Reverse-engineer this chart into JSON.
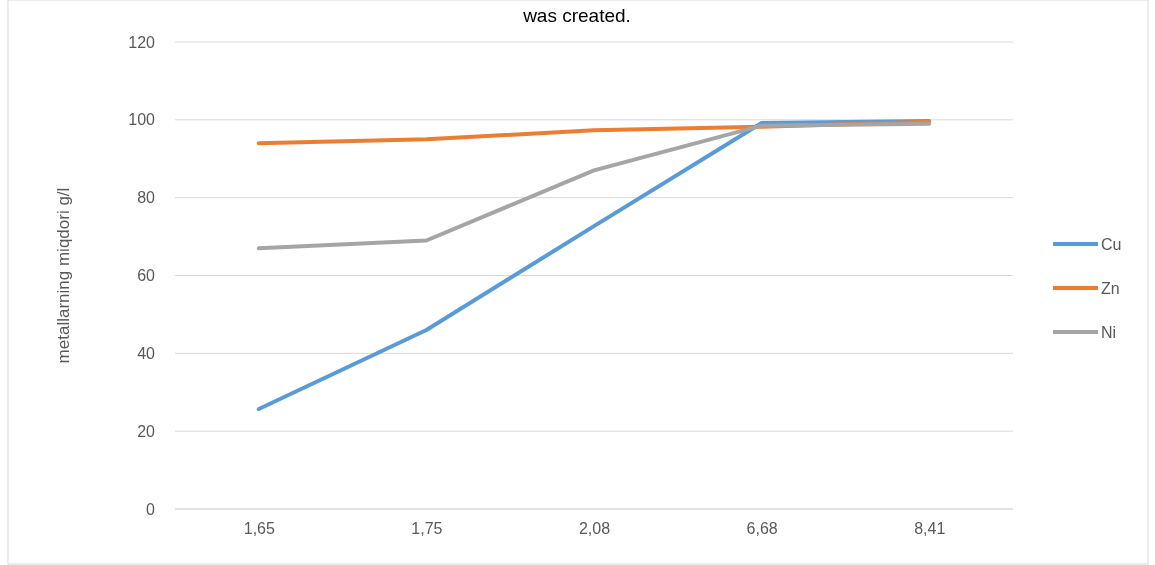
{
  "chart_data": {
    "type": "line",
    "title": "was created.",
    "ylabel": "metallarning miqdori g/l",
    "categories": [
      "1,65",
      "1,75",
      "2,08",
      "6,68",
      "8,41"
    ],
    "series": [
      {
        "name": "Cu",
        "color": "#5b9bd5",
        "values": [
          25.7,
          46,
          72.7,
          99.2,
          99.7
        ]
      },
      {
        "name": "Zn",
        "color": "#ed7d31",
        "values": [
          94,
          95,
          97.3,
          98.2,
          99.5
        ]
      },
      {
        "name": "Ni",
        "color": "#a5a5a5",
        "values": [
          67,
          69,
          87,
          98.5,
          99
        ]
      }
    ],
    "ylim": [
      0,
      120
    ],
    "yticks": [
      0,
      20,
      40,
      60,
      80,
      100,
      120
    ],
    "grid": "y",
    "legend": "right",
    "marker": "none",
    "line_style": "solid"
  }
}
